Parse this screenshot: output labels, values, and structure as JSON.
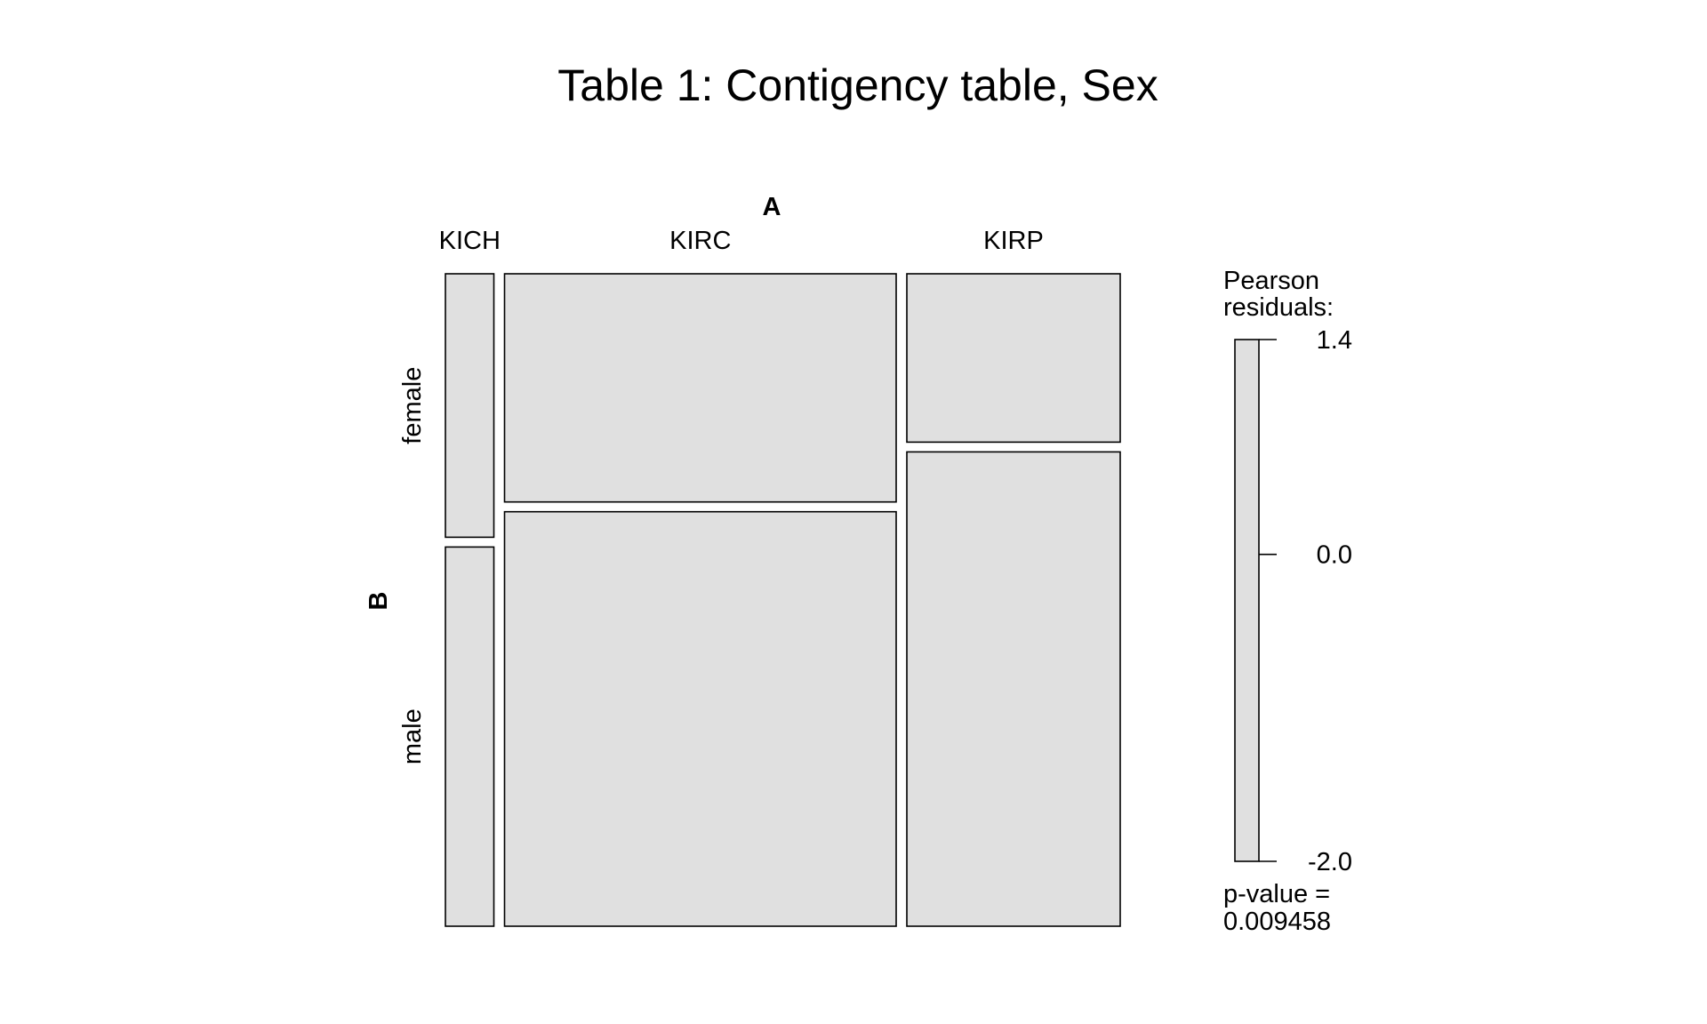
{
  "chart_data": {
    "type": "mosaic",
    "title": "Table 1: Contigency table, Sex",
    "x_variable": "A",
    "y_variable": "B",
    "columns": [
      "KICH",
      "KIRC",
      "KIRP"
    ],
    "rows": [
      "female",
      "male"
    ],
    "column_proportions": [
      0.072,
      0.582,
      0.317
    ],
    "row_proportions_by_column": [
      [
        0.41,
        0.59
      ],
      [
        0.355,
        0.645
      ],
      [
        0.262,
        0.738
      ]
    ],
    "tile_color": "#e0e0e0",
    "legend": {
      "title_line1": "Pearson",
      "title_line2": "residuals:",
      "ticks": [
        1.4,
        0.0,
        -2.0
      ],
      "tick_labels": [
        "1.4",
        "0.0",
        "-2.0"
      ],
      "range": [
        -2.0,
        1.4
      ]
    },
    "pvalue_line1": "p-value =",
    "pvalue_line2": "0.009458"
  }
}
